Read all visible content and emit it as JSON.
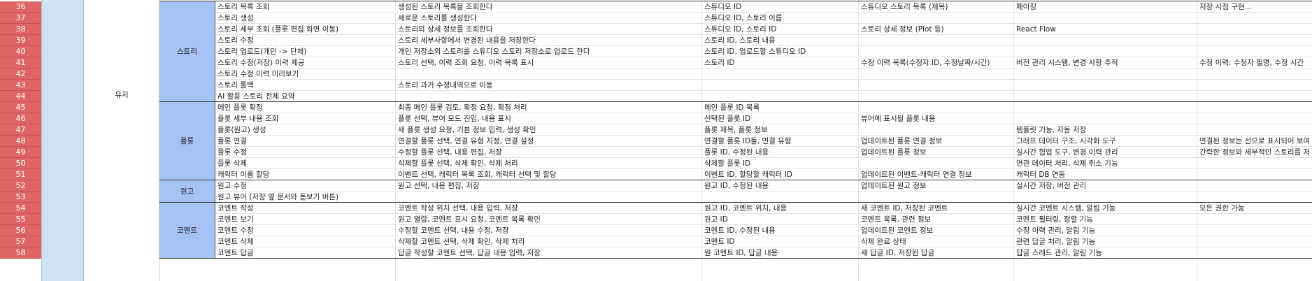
{
  "sheet": {
    "row_numbers": [
      "36",
      "37",
      "38",
      "39",
      "40",
      "41",
      "42",
      "43",
      "44",
      "45",
      "46",
      "47",
      "48",
      "49",
      "50",
      "51",
      "52",
      "53",
      "54",
      "55",
      "56",
      "57",
      "58"
    ],
    "sub_label": "유저",
    "groups": [
      {
        "name": "스토리",
        "start": 0,
        "count": 9
      },
      {
        "name": "플롯",
        "start": 9,
        "count": 7
      },
      {
        "name": "원고",
        "start": 16,
        "count": 2
      },
      {
        "name": "코멘트",
        "start": 18,
        "count": 5
      }
    ],
    "rows": [
      [
        "스토리 목록 조회",
        "생성된 스토리 목록을 조회한다",
        "스튜디오 ID",
        "스튜디오 스토리 목록 (제목)",
        "페이징",
        "저장 시점 구현..."
      ],
      [
        "스토리 생성",
        "새로운 스토리를 생성한다",
        "스튜디오 ID, 스토리 이름",
        "",
        "",
        ""
      ],
      [
        "스토리 세부 조회 (플롯 편집 화면 이동)",
        "스토리의 상세 정보를 조회한다",
        "스튜디오 ID, 스토리 ID",
        "스토리 상세 정보 (Plot 등)",
        "React Flow",
        ""
      ],
      [
        "스토리 수정",
        "스토리 세부사항에서 변경된 내용을 저장한다",
        "스토리 ID, 스토리 내용",
        "",
        "",
        ""
      ],
      [
        "스토리 업로드(개인 -> 단체)",
        "개인 저장소의 스토리를 스튜디오 스토리 저장소로 업로드 한다",
        "스토리 ID, 업로드할 스튜디오 ID",
        "",
        "",
        ""
      ],
      [
        "스토리 수정(저장) 이력 제공",
        "스토리 선택, 이력 조회 요청, 이력 목록 표시",
        "스토리 ID",
        "수정 이력 목록(수정자 ID, 수정날짜/시간)",
        "버전 관리 시스템, 변경 사항 추적",
        "수정 이력: 수정자 필명, 수정 시간"
      ],
      [
        "스토리 수정 이력 미리보기",
        "",
        "",
        "",
        "",
        ""
      ],
      [
        "스토리 롤백",
        "스토리 과거 수정내역으로 이동",
        "",
        "",
        "",
        ""
      ],
      [
        "AI 활용 스토리 전체 요약",
        "",
        "",
        "",
        "",
        ""
      ],
      [
        "메인 플롯 확정",
        "최종 메인 플롯 검토, 확정 요청, 확정 처리",
        "메인 플롯 ID 목록",
        "",
        "",
        ""
      ],
      [
        "플롯 세부 내용 조회",
        "플롯 선택, 뷰어 모드 진입, 내용 표시",
        "선택된 플롯 ID",
        "뷰어에 표시될 플롯 내용",
        "",
        ""
      ],
      [
        "플롯(원고) 생성",
        "새 플롯 생성 요청, 기본 정보 입력, 생성 확인",
        "플롯 제목, 플롯 정보",
        "",
        "템플릿 기능, 자동 저장",
        ""
      ],
      [
        "플롯 연결",
        "연결할 플롯 선택, 연결 유형 지정, 연결 설정",
        "연결할 플롯 ID들, 연결 유형",
        "업데이트된 플롯 연결 정보",
        "그래프 데이터 구조, 시각화 도구",
        "연결된 정보는 선으로 표시되어 보여"
      ],
      [
        "플롯 수정",
        "수정할 플롯 선택, 내용 편집, 저장",
        "플롯 ID, 수정된 내용",
        "업데이트된 플롯 정보",
        "실시간 협업 도구, 변경 이력 관리",
        "간략한 정보와 세부적인 스토리를 저"
      ],
      [
        "플롯 삭제",
        "삭제할 플롯 선택, 삭제 확인, 삭제 처리",
        "삭제할 플롯 ID",
        "",
        "연관 데이터 처리, 삭제 취소 기능",
        ""
      ],
      [
        "캐릭터 이름 할당",
        "이벤트 선택, 캐릭터 목록 조회, 캐릭터 선택 및 할당",
        "이벤트 ID, 할당할 캐릭터 ID",
        "업데이트된 이벤트-캐릭터 연결 정보",
        "캐릭터 DB 연동",
        ""
      ],
      [
        "원고 수정",
        "원고 선택, 내용 편집, 저장",
        "원고 ID, 수정된 내용",
        "업데이트된 원고 정보",
        "실시간 저장, 버전 관리",
        ""
      ],
      [
        "원고 뷰어 (저장 옆 문서와 돋보기 버튼)",
        "",
        "",
        "",
        "",
        ""
      ],
      [
        "코멘트 작성",
        "코멘트 작성 위치 선택, 내용 입력, 저장",
        "원고 ID, 코멘트 위치, 내용",
        "새 코멘트 ID, 저장된 코멘트",
        "실시간 코멘트 시스템, 알림 기능",
        "모든 권한 가능"
      ],
      [
        "코멘트 보기",
        "원고 열람, 코멘트 표시 요청, 코멘트 목록 확인",
        "원고 ID",
        "코멘트 목록, 관련 정보",
        "코멘트 필터링, 정렬 기능",
        ""
      ],
      [
        "코멘트 수정",
        "수정할 코멘트 선택, 내용 수정, 저장",
        "코멘트 ID, 수정된 내용",
        "업데이트된 코멘트 정보",
        "수정 이력 관리, 알림 기능",
        ""
      ],
      [
        "코멘트 삭제",
        "삭제할 코멘트 선택, 삭제 확인, 삭제 처리",
        "코멘트 ID",
        "삭제 완료 상태",
        "관련 답글 처리, 알림 기능",
        ""
      ],
      [
        "코멘트 답글",
        "답글 작성할 코멘트 선택, 답글 내용 입력, 저장",
        "원 코멘트 ID, 답글 내용",
        "새 답글 ID, 저장된 답글",
        "답글 스레드 관리, 알림 기능",
        ""
      ]
    ]
  }
}
